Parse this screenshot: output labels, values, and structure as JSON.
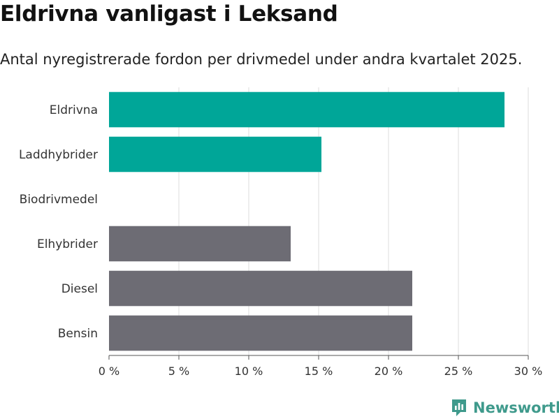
{
  "header": {
    "title": "Eldrivna vanligast i Leksand",
    "subtitle": "Antal nyregistrerade fordon per drivmedel under andra kvartalet 2025."
  },
  "brand": {
    "name": "Newsworthy",
    "icon": "newsworthy-logo-icon",
    "color": "#3f9a8c"
  },
  "colors": {
    "highlight": "#00a698",
    "default": "#6d6c74",
    "grid": "#dcdcdc",
    "axis": "#555555"
  },
  "chart_data": {
    "type": "bar",
    "orientation": "horizontal",
    "categories": [
      "Eldrivna",
      "Laddhybrider",
      "Biodrivmedel",
      "Elhybrider",
      "Diesel",
      "Bensin"
    ],
    "values": [
      28.3,
      15.2,
      0,
      13.0,
      21.7,
      21.7
    ],
    "highlighted": [
      true,
      true,
      false,
      false,
      false,
      false
    ],
    "xlim": [
      0,
      30
    ],
    "xticks": [
      0,
      5,
      10,
      15,
      20,
      25,
      30
    ],
    "tick_format": "{v} %",
    "grid": true
  }
}
